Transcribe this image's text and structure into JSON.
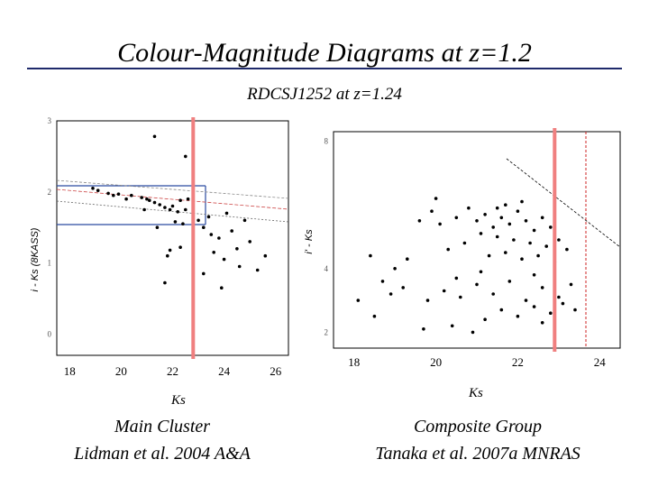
{
  "title": "Colour-Magnitude Diagrams at z=1.2",
  "subtitle": "RDCSJ1252 at z=1.24",
  "colors": {
    "cut_line": "#f08080",
    "frame": "#000000",
    "title_rule": "#1f2a6b"
  },
  "chart_data": [
    {
      "type": "scatter",
      "xlabel": "Ks",
      "ylabel": "i - Ks (8KASS)",
      "xticks": [
        "18",
        "20",
        "22",
        "24",
        "26"
      ],
      "yticks": [
        "0",
        "1",
        "2",
        "3"
      ],
      "xlim": [
        17.5,
        26.5
      ],
      "ylim": [
        -0.3,
        3.0
      ],
      "magnitude_cut": 22.8,
      "caption_line1": "Main Cluster",
      "caption_line2": "Lidman et al. 2004 A&A",
      "points": [
        [
          18.9,
          2.05
        ],
        [
          19.1,
          2.02
        ],
        [
          19.7,
          1.95
        ],
        [
          19.9,
          1.97
        ],
        [
          20.4,
          1.95
        ],
        [
          20.8,
          1.92
        ],
        [
          21.0,
          1.9
        ],
        [
          21.3,
          1.85
        ],
        [
          21.5,
          1.82
        ],
        [
          21.7,
          1.78
        ],
        [
          21.9,
          1.75
        ],
        [
          22.0,
          1.8
        ],
        [
          22.2,
          1.72
        ],
        [
          22.3,
          1.88
        ],
        [
          22.5,
          1.75
        ],
        [
          22.6,
          1.9
        ],
        [
          22.8,
          1.7
        ],
        [
          23.0,
          1.6
        ],
        [
          23.2,
          1.5
        ],
        [
          23.4,
          1.65
        ],
        [
          23.5,
          1.4
        ],
        [
          23.8,
          1.35
        ],
        [
          24.1,
          1.7
        ],
        [
          24.3,
          1.45
        ],
        [
          24.5,
          1.2
        ],
        [
          24.8,
          1.6
        ],
        [
          25.0,
          1.3
        ],
        [
          25.3,
          0.9
        ],
        [
          25.6,
          1.1
        ],
        [
          21.3,
          2.78
        ],
        [
          22.5,
          2.5
        ],
        [
          22.3,
          1.22
        ],
        [
          21.9,
          1.18
        ],
        [
          21.8,
          1.1
        ],
        [
          21.7,
          0.72
        ],
        [
          23.2,
          0.85
        ],
        [
          23.9,
          0.65
        ],
        [
          19.5,
          1.98
        ],
        [
          20.2,
          1.9
        ],
        [
          21.1,
          1.88
        ],
        [
          22.1,
          1.58
        ],
        [
          22.4,
          1.55
        ],
        [
          23.6,
          1.15
        ],
        [
          24.0,
          1.05
        ],
        [
          24.6,
          0.95
        ],
        [
          21.4,
          1.5
        ],
        [
          20.9,
          1.75
        ]
      ]
    },
    {
      "type": "scatter",
      "xlabel": "Ks",
      "ylabel": "i' - Ks",
      "xticks": [
        "18",
        "20",
        "22",
        "24"
      ],
      "yticks": [
        "2",
        "4",
        "8"
      ],
      "xlim": [
        17.5,
        24.5
      ],
      "ylim": [
        1.5,
        8.3
      ],
      "magnitude_cut": 22.9,
      "caption_line1": "Composite Group",
      "caption_line2": "Tanaka et al. 2007a MNRAS",
      "points": [
        [
          19.6,
          5.5
        ],
        [
          19.9,
          5.8
        ],
        [
          20.1,
          5.4
        ],
        [
          20.5,
          5.6
        ],
        [
          20.8,
          5.9
        ],
        [
          21.0,
          5.5
        ],
        [
          21.2,
          5.7
        ],
        [
          21.4,
          5.3
        ],
        [
          21.6,
          5.6
        ],
        [
          21.8,
          5.4
        ],
        [
          22.0,
          5.8
        ],
        [
          22.2,
          5.5
        ],
        [
          22.4,
          5.2
        ],
        [
          22.6,
          5.6
        ],
        [
          22.8,
          5.3
        ],
        [
          21.1,
          5.1
        ],
        [
          21.5,
          5.0
        ],
        [
          21.9,
          4.9
        ],
        [
          22.3,
          4.8
        ],
        [
          22.7,
          4.7
        ],
        [
          20.3,
          4.6
        ],
        [
          20.7,
          4.8
        ],
        [
          21.3,
          4.4
        ],
        [
          21.7,
          4.5
        ],
        [
          22.1,
          4.3
        ],
        [
          22.5,
          4.4
        ],
        [
          22.9,
          4.2
        ],
        [
          23.2,
          4.6
        ],
        [
          19.3,
          4.3
        ],
        [
          19.0,
          4.0
        ],
        [
          18.4,
          4.4
        ],
        [
          18.7,
          3.6
        ],
        [
          18.9,
          3.2
        ],
        [
          19.2,
          3.4
        ],
        [
          19.8,
          3.0
        ],
        [
          20.2,
          3.3
        ],
        [
          20.6,
          3.1
        ],
        [
          21.0,
          3.5
        ],
        [
          21.4,
          3.2
        ],
        [
          21.8,
          3.6
        ],
        [
          22.2,
          3.0
        ],
        [
          22.6,
          3.4
        ],
        [
          23.0,
          3.1
        ],
        [
          23.3,
          3.5
        ],
        [
          21.6,
          2.7
        ],
        [
          22.0,
          2.5
        ],
        [
          22.4,
          2.8
        ],
        [
          22.8,
          2.6
        ],
        [
          23.1,
          2.9
        ],
        [
          21.2,
          2.4
        ],
        [
          20.4,
          2.2
        ],
        [
          19.7,
          2.1
        ],
        [
          18.1,
          3.0
        ],
        [
          18.5,
          2.5
        ],
        [
          20.9,
          2.0
        ],
        [
          22.6,
          2.3
        ],
        [
          23.4,
          2.7
        ],
        [
          21.5,
          5.9
        ],
        [
          22.1,
          6.1
        ],
        [
          20.0,
          6.2
        ],
        [
          21.7,
          6.0
        ],
        [
          23.0,
          4.9
        ],
        [
          22.4,
          3.8
        ],
        [
          21.1,
          3.9
        ],
        [
          20.5,
          3.7
        ]
      ]
    }
  ]
}
